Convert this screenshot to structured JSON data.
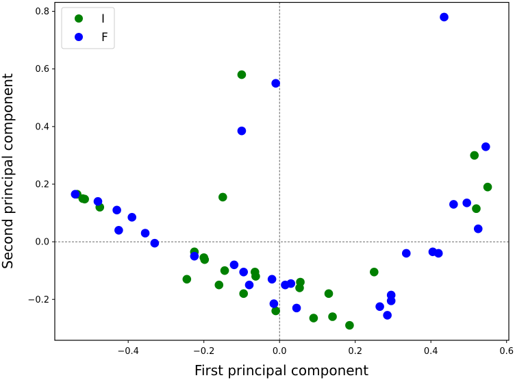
{
  "chart_data": {
    "type": "scatter",
    "title": "",
    "xlabel": "First principal component",
    "ylabel": "Second principal component",
    "xlim": [
      -0.594,
      0.606
    ],
    "ylim": [
      -0.342,
      0.831
    ],
    "xticks": [
      -0.4,
      -0.2,
      0.0,
      0.2,
      0.4,
      0.6
    ],
    "xtick_labels": [
      "−0.4",
      "−0.2",
      "0.0",
      "0.2",
      "0.4",
      "0.6"
    ],
    "yticks": [
      -0.2,
      0.0,
      0.2,
      0.4,
      0.6,
      0.8
    ],
    "ytick_labels": [
      "−0.2",
      "0.0",
      "0.2",
      "0.4",
      "0.6",
      "0.8"
    ],
    "grid": false,
    "reference_lines": {
      "x": 0.0,
      "y": 0.0,
      "style": "dashed"
    },
    "legend_position": "upper left",
    "series": [
      {
        "name": "I",
        "color": "#008000",
        "points": [
          [
            -0.535,
            0.165
          ],
          [
            -0.52,
            0.15
          ],
          [
            -0.515,
            0.148
          ],
          [
            -0.475,
            0.12
          ],
          [
            -0.15,
            0.155
          ],
          [
            -0.1,
            0.58
          ],
          [
            -0.225,
            -0.035
          ],
          [
            -0.2,
            -0.055
          ],
          [
            -0.198,
            -0.062
          ],
          [
            -0.245,
            -0.13
          ],
          [
            -0.16,
            -0.15
          ],
          [
            -0.145,
            -0.1
          ],
          [
            -0.065,
            -0.105
          ],
          [
            -0.063,
            -0.12
          ],
          [
            -0.095,
            -0.18
          ],
          [
            -0.01,
            -0.24
          ],
          [
            0.055,
            -0.14
          ],
          [
            0.053,
            -0.16
          ],
          [
            0.09,
            -0.265
          ],
          [
            0.13,
            -0.18
          ],
          [
            0.14,
            -0.26
          ],
          [
            0.185,
            -0.29
          ],
          [
            0.25,
            -0.105
          ],
          [
            0.515,
            0.3
          ],
          [
            0.52,
            0.115
          ],
          [
            0.55,
            0.19
          ]
        ]
      },
      {
        "name": "F",
        "color": "#0000ff",
        "points": [
          [
            -0.54,
            0.165
          ],
          [
            -0.48,
            0.14
          ],
          [
            -0.43,
            0.11
          ],
          [
            -0.425,
            0.04
          ],
          [
            -0.39,
            0.085
          ],
          [
            -0.355,
            0.03
          ],
          [
            -0.33,
            -0.005
          ],
          [
            -0.225,
            -0.05
          ],
          [
            -0.12,
            -0.08
          ],
          [
            -0.1,
            0.385
          ],
          [
            -0.095,
            -0.105
          ],
          [
            -0.08,
            -0.15
          ],
          [
            -0.01,
            0.55
          ],
          [
            -0.02,
            -0.13
          ],
          [
            -0.015,
            -0.215
          ],
          [
            0.015,
            -0.15
          ],
          [
            0.03,
            -0.145
          ],
          [
            0.045,
            -0.23
          ],
          [
            0.265,
            -0.225
          ],
          [
            0.285,
            -0.255
          ],
          [
            0.295,
            -0.185
          ],
          [
            0.295,
            -0.205
          ],
          [
            0.335,
            -0.04
          ],
          [
            0.405,
            -0.035
          ],
          [
            0.42,
            -0.04
          ],
          [
            0.435,
            0.78
          ],
          [
            0.46,
            0.13
          ],
          [
            0.495,
            0.135
          ],
          [
            0.525,
            0.045
          ],
          [
            0.545,
            0.33
          ]
        ]
      }
    ]
  },
  "legend": {
    "items": [
      {
        "label": "I",
        "color": "#008000"
      },
      {
        "label": "F",
        "color": "#0000ff"
      }
    ]
  }
}
